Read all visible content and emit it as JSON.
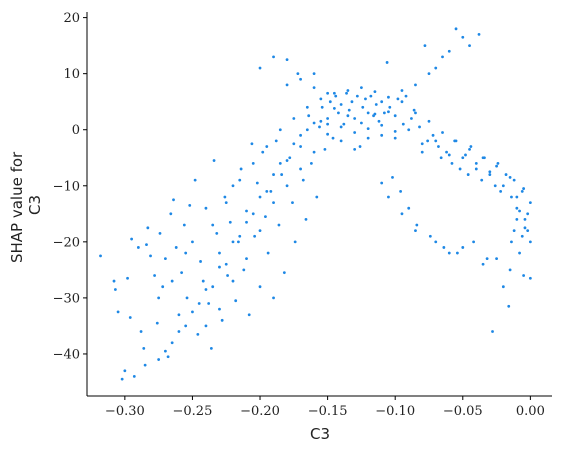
{
  "chart_data": {
    "type": "scatter",
    "title": "",
    "xlabel": "C3",
    "ylabel_lines": [
      "SHAP value for",
      "C3"
    ],
    "xlim": [
      -0.328,
      0.016
    ],
    "ylim": [
      -47.5,
      21.0
    ],
    "xticks": [
      -0.3,
      -0.25,
      -0.2,
      -0.15,
      -0.1,
      -0.05,
      0.0
    ],
    "xtick_labels": [
      "−0.30",
      "−0.25",
      "−0.20",
      "−0.15",
      "−0.10",
      "−0.05",
      "0.00"
    ],
    "yticks": [
      -40,
      -30,
      -20,
      -10,
      0,
      10,
      20
    ],
    "ytick_labels": [
      "−40",
      "−30",
      "−20",
      "−10",
      "0",
      "10",
      "20"
    ],
    "grid": false,
    "legend": "none",
    "point_color": "#1E88E5",
    "series": [
      {
        "points": [
          [
            -0.318,
            -22.5
          ],
          [
            -0.308,
            -27
          ],
          [
            -0.307,
            -28.5
          ],
          [
            -0.305,
            -32.5
          ],
          [
            -0.302,
            -44.5
          ],
          [
            -0.3,
            -43
          ],
          [
            -0.298,
            -26.5
          ],
          [
            -0.296,
            -33.5
          ],
          [
            -0.295,
            -19.5
          ],
          [
            -0.293,
            -44
          ],
          [
            -0.29,
            -21
          ],
          [
            -0.288,
            -36
          ],
          [
            -0.286,
            -39
          ],
          [
            -0.284,
            -20.5
          ],
          [
            -0.283,
            -17.5
          ],
          [
            -0.281,
            -22.5
          ],
          [
            -0.278,
            -26
          ],
          [
            -0.276,
            -34.5
          ],
          [
            -0.274,
            -18.5
          ],
          [
            -0.272,
            -28
          ],
          [
            -0.27,
            -23
          ],
          [
            -0.268,
            -40.5
          ],
          [
            -0.266,
            -15
          ],
          [
            -0.264,
            -12.5
          ],
          [
            -0.262,
            -21
          ],
          [
            -0.26,
            -33
          ],
          [
            -0.258,
            -25.5
          ],
          [
            -0.256,
            -17
          ],
          [
            -0.254,
            -30
          ],
          [
            -0.252,
            -13.5
          ],
          [
            -0.25,
            -20
          ],
          [
            -0.248,
            -9
          ],
          [
            -0.246,
            -36.5
          ],
          [
            -0.244,
            -23.5
          ],
          [
            -0.242,
            -27
          ],
          [
            -0.24,
            -14
          ],
          [
            -0.238,
            -31
          ],
          [
            -0.236,
            -39
          ],
          [
            -0.234,
            -5.5
          ],
          [
            -0.232,
            -18.5
          ],
          [
            -0.23,
            -22
          ],
          [
            -0.228,
            -34
          ],
          [
            -0.226,
            -12
          ],
          [
            -0.224,
            -26
          ],
          [
            -0.222,
            -16.5
          ],
          [
            -0.22,
            -10
          ],
          [
            -0.218,
            -30.5
          ],
          [
            -0.216,
            -20
          ],
          [
            -0.214,
            -7
          ],
          [
            -0.212,
            -25
          ],
          [
            -0.21,
            -14.5
          ],
          [
            -0.208,
            -33
          ],
          [
            -0.206,
            -2.5
          ],
          [
            -0.204,
            -19
          ],
          [
            -0.202,
            -9.5
          ],
          [
            -0.2,
            -28
          ],
          [
            -0.198,
            -4
          ],
          [
            -0.196,
            -15.5
          ],
          [
            -0.194,
            -22
          ],
          [
            -0.192,
            -11
          ],
          [
            -0.19,
            -30
          ],
          [
            -0.188,
            -2
          ],
          [
            -0.186,
            -17
          ],
          [
            -0.184,
            -8
          ],
          [
            -0.182,
            -25.5
          ],
          [
            -0.18,
            12.5
          ],
          [
            -0.178,
            -5
          ],
          [
            -0.176,
            -13
          ],
          [
            -0.174,
            -20
          ],
          [
            -0.172,
            10
          ],
          [
            -0.17,
            -1
          ],
          [
            -0.168,
            -9
          ],
          [
            -0.166,
            -16
          ],
          [
            -0.164,
            2.5
          ],
          [
            -0.162,
            -6
          ],
          [
            -0.16,
            7.5
          ],
          [
            -0.158,
            -12
          ],
          [
            -0.156,
            0.5
          ],
          [
            -0.154,
            4
          ],
          [
            -0.152,
            -3.5
          ],
          [
            -0.15,
            2
          ],
          [
            -0.148,
            5
          ],
          [
            -0.146,
            -1.5
          ],
          [
            -0.144,
            6
          ],
          [
            -0.142,
            3
          ],
          [
            -0.14,
            4.5
          ],
          [
            -0.138,
            1
          ],
          [
            -0.136,
            6.5
          ],
          [
            -0.134,
            3.5
          ],
          [
            -0.132,
            5
          ],
          [
            -0.13,
            2
          ],
          [
            -0.128,
            6
          ],
          [
            -0.126,
            -3
          ],
          [
            -0.124,
            4
          ],
          [
            -0.122,
            5.5
          ],
          [
            -0.12,
            3
          ],
          [
            -0.118,
            6
          ],
          [
            -0.116,
            2.5
          ],
          [
            -0.114,
            4.5
          ],
          [
            -0.112,
            1.5
          ],
          [
            -0.11,
            5
          ],
          [
            -0.108,
            3
          ],
          [
            -0.106,
            12
          ],
          [
            -0.104,
            4
          ],
          [
            -0.102,
            -8.5
          ],
          [
            -0.1,
            2.5
          ],
          [
            -0.098,
            5.5
          ],
          [
            -0.096,
            -11
          ],
          [
            -0.094,
            1
          ],
          [
            -0.092,
            6
          ],
          [
            -0.09,
            -14
          ],
          [
            -0.088,
            2
          ],
          [
            -0.086,
            3.5
          ],
          [
            -0.084,
            -17
          ],
          [
            -0.082,
            0.5
          ],
          [
            -0.08,
            -4
          ],
          [
            -0.078,
            15
          ],
          [
            -0.076,
            -2
          ],
          [
            -0.074,
            -19
          ],
          [
            -0.072,
            -1
          ],
          [
            -0.07,
            11
          ],
          [
            -0.068,
            -3
          ],
          [
            -0.066,
            -5
          ],
          [
            -0.064,
            -21
          ],
          [
            -0.062,
            -4
          ],
          [
            -0.06,
            14
          ],
          [
            -0.058,
            -6
          ],
          [
            -0.056,
            -2
          ],
          [
            -0.054,
            -22
          ],
          [
            -0.052,
            -7
          ],
          [
            -0.05,
            16.5
          ],
          [
            -0.048,
            -4.5
          ],
          [
            -0.046,
            -8
          ],
          [
            -0.044,
            -3
          ],
          [
            -0.042,
            -20
          ],
          [
            -0.04,
            -6
          ],
          [
            -0.038,
            17
          ],
          [
            -0.036,
            -9
          ],
          [
            -0.034,
            -5
          ],
          [
            -0.032,
            -23
          ],
          [
            -0.03,
            -7.5
          ],
          [
            -0.028,
            -36
          ],
          [
            -0.026,
            -10
          ],
          [
            -0.024,
            -6
          ],
          [
            -0.022,
            -11
          ],
          [
            -0.02,
            -28
          ],
          [
            -0.018,
            -8
          ],
          [
            -0.016,
            -31.5
          ],
          [
            -0.014,
            -12
          ],
          [
            -0.012,
            -9
          ],
          [
            -0.01,
            -14
          ],
          [
            -0.008,
            -22
          ],
          [
            -0.006,
            -11
          ],
          [
            -0.004,
            -16
          ],
          [
            -0.002,
            -18
          ],
          [
            0.0,
            -26.5
          ],
          [
            0.0,
            -13
          ],
          [
            0.0,
            -20
          ],
          [
            -0.12,
            -1.5
          ],
          [
            -0.14,
            -2
          ],
          [
            -0.13,
            -3.5
          ],
          [
            -0.11,
            -1
          ],
          [
            -0.15,
            1
          ],
          [
            -0.16,
            -4
          ],
          [
            -0.17,
            -7
          ],
          [
            -0.19,
            -13
          ],
          [
            -0.2,
            -18
          ],
          [
            -0.21,
            -23
          ],
          [
            -0.22,
            -27
          ],
          [
            -0.23,
            -32
          ],
          [
            -0.24,
            -35
          ],
          [
            -0.18,
            -10
          ],
          [
            -0.1,
            -1.5
          ],
          [
            -0.09,
            0
          ],
          [
            -0.08,
            -2.5
          ],
          [
            -0.07,
            -2
          ],
          [
            -0.06,
            -4.5
          ],
          [
            -0.05,
            -5
          ],
          [
            -0.04,
            -7
          ],
          [
            -0.03,
            -8
          ],
          [
            -0.02,
            -10
          ],
          [
            -0.01,
            -12
          ],
          [
            -0.125,
            1.2
          ],
          [
            -0.115,
            2.8
          ],
          [
            -0.105,
            3.2
          ],
          [
            -0.135,
            2.5
          ],
          [
            -0.145,
            3.8
          ],
          [
            -0.155,
            1.5
          ],
          [
            -0.165,
            0
          ],
          [
            -0.175,
            -2.5
          ],
          [
            -0.185,
            -6
          ],
          [
            -0.195,
            -11
          ],
          [
            -0.205,
            -15
          ],
          [
            -0.215,
            -19
          ],
          [
            -0.225,
            -24
          ],
          [
            -0.235,
            -28
          ],
          [
            -0.245,
            -31
          ],
          [
            -0.255,
            -35
          ],
          [
            -0.265,
            -38
          ],
          [
            -0.275,
            -41
          ],
          [
            -0.285,
            -42
          ],
          [
            -0.2,
            11
          ],
          [
            -0.19,
            13
          ],
          [
            -0.18,
            8
          ],
          [
            -0.17,
            9
          ],
          [
            -0.16,
            10
          ],
          [
            -0.15,
            6.5
          ],
          [
            -0.055,
            18
          ],
          [
            -0.045,
            15
          ],
          [
            -0.065,
            13
          ],
          [
            -0.075,
            10
          ],
          [
            -0.085,
            8
          ],
          [
            -0.095,
            7
          ],
          [
            -0.11,
            -9.5
          ],
          [
            -0.105,
            -12
          ],
          [
            -0.095,
            -15
          ],
          [
            -0.085,
            -18
          ],
          [
            -0.07,
            -20
          ],
          [
            -0.06,
            -22
          ],
          [
            -0.05,
            -21
          ],
          [
            -0.035,
            -24
          ],
          [
            -0.025,
            -23
          ],
          [
            -0.015,
            -25
          ],
          [
            -0.005,
            -26
          ],
          [
            -0.13,
            -0.5
          ],
          [
            -0.12,
            0.2
          ],
          [
            -0.11,
            0.8
          ],
          [
            -0.1,
            -0.3
          ],
          [
            -0.14,
            0.5
          ],
          [
            -0.15,
            -0.8
          ],
          [
            -0.16,
            1.2
          ],
          [
            -0.17,
            -3
          ],
          [
            -0.18,
            -5.5
          ],
          [
            -0.19,
            -8
          ],
          [
            -0.2,
            -12
          ],
          [
            -0.21,
            -16.5
          ],
          [
            -0.22,
            -20
          ],
          [
            -0.23,
            -24.5
          ],
          [
            -0.24,
            -28.5
          ],
          [
            -0.25,
            -32.5
          ],
          [
            -0.26,
            -36
          ],
          [
            -0.27,
            -39.5
          ],
          [
            -0.255,
            -22
          ],
          [
            -0.265,
            -27
          ],
          [
            -0.275,
            -30
          ],
          [
            -0.235,
            -17
          ],
          [
            -0.225,
            -13
          ],
          [
            -0.215,
            -9
          ],
          [
            -0.205,
            -6
          ],
          [
            -0.195,
            -3
          ],
          [
            -0.185,
            0
          ],
          [
            -0.175,
            2
          ],
          [
            -0.165,
            4
          ],
          [
            -0.155,
            5.5
          ],
          [
            -0.145,
            6.5
          ],
          [
            -0.135,
            7
          ],
          [
            -0.125,
            7.5
          ],
          [
            -0.115,
            6.8
          ],
          [
            -0.105,
            5.8
          ],
          [
            -0.095,
            5
          ],
          [
            -0.085,
            3
          ],
          [
            -0.075,
            1.5
          ],
          [
            -0.065,
            -0.5
          ],
          [
            -0.055,
            -2
          ],
          [
            -0.045,
            -3.5
          ],
          [
            -0.035,
            -5
          ],
          [
            -0.025,
            -6.5
          ],
          [
            -0.015,
            -8.5
          ],
          [
            -0.005,
            -10.5
          ],
          [
            -0.002,
            -15
          ],
          [
            -0.004,
            -17.5
          ],
          [
            -0.006,
            -19
          ],
          [
            -0.008,
            -14.5
          ],
          [
            -0.01,
            -16
          ],
          [
            -0.012,
            -18
          ],
          [
            -0.014,
            -20
          ]
        ]
      }
    ]
  }
}
